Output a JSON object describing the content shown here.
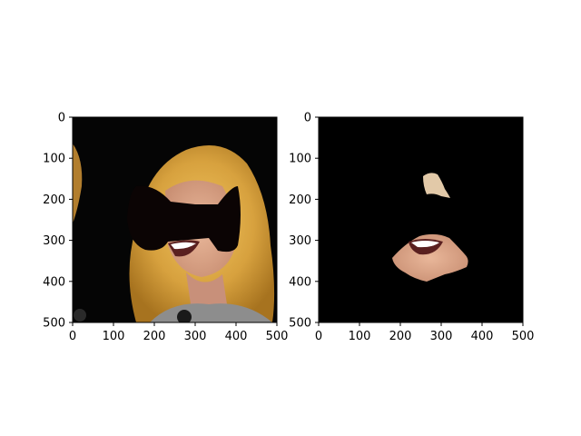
{
  "figure": {
    "background": "#ffffff",
    "panels": [
      {
        "kind": "photo-with-black-bowtie-mask",
        "description_icon": "masked-portrait",
        "xlim": [
          0,
          500
        ],
        "ylim": [
          500,
          0
        ],
        "xticks": [
          0,
          100,
          200,
          300,
          400,
          500
        ],
        "yticks": [
          0,
          100,
          200,
          300,
          400,
          500
        ],
        "colors": {
          "background": "#050505",
          "hair": "#d8a640",
          "skin": "#e0aa88",
          "mask": "#0b0404"
        }
      },
      {
        "kind": "segmented-mouth-region-on-black",
        "description_icon": "segmented-face",
        "xlim": [
          0,
          500
        ],
        "ylim": [
          500,
          0
        ],
        "xticks": [
          0,
          100,
          200,
          300,
          400,
          500
        ],
        "yticks": [
          0,
          100,
          200,
          300,
          400,
          500
        ],
        "colors": {
          "background": "#000000",
          "skin": "#d9a489",
          "forehead": "#e2c9a8"
        }
      }
    ]
  }
}
